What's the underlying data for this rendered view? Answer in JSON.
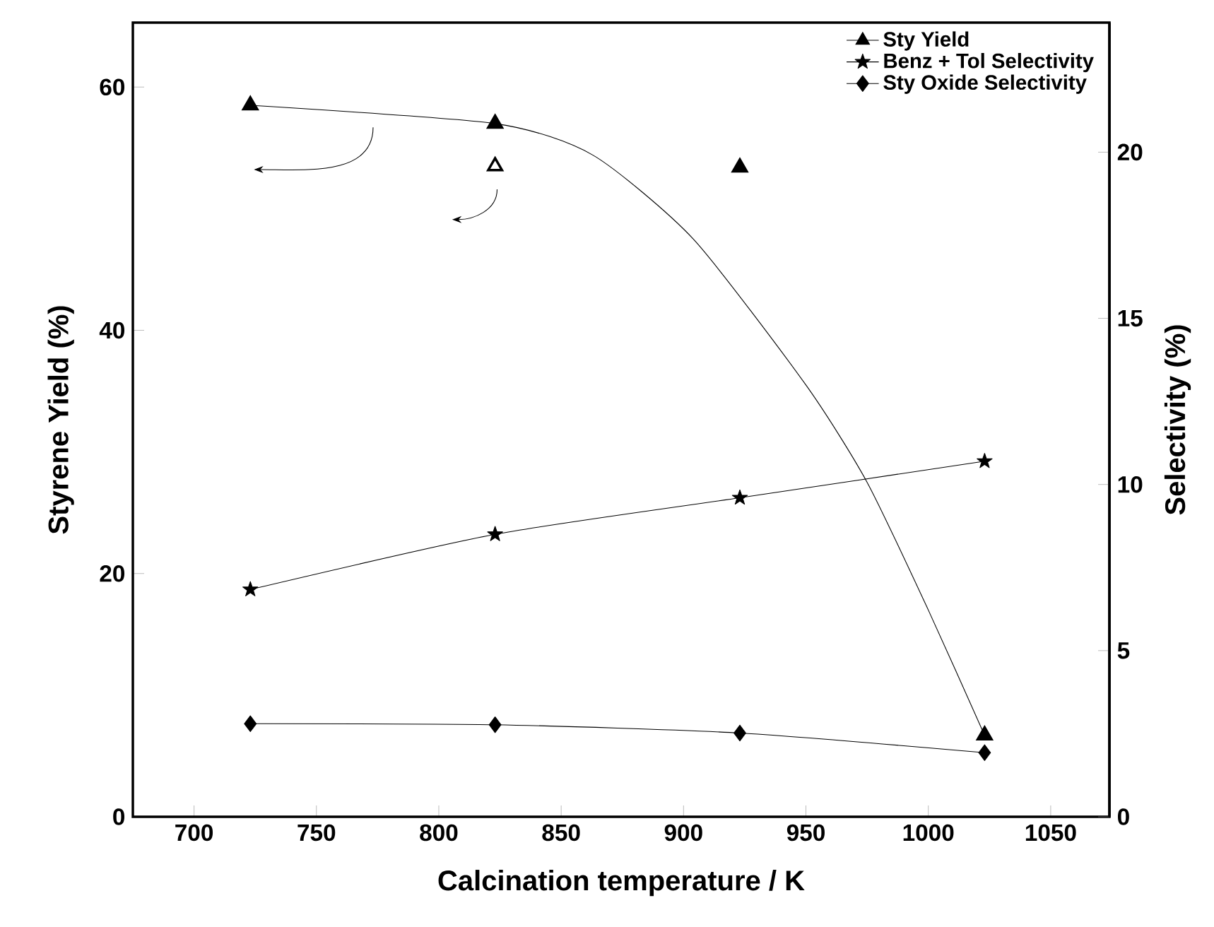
{
  "chart_data": {
    "type": "line",
    "xlabel": "Calcination temperature / K",
    "ylabel": "Styrene Yield (%)",
    "y2label": "Selectivity (%)",
    "x": [
      723,
      823,
      923,
      1023
    ],
    "xlim": [
      675,
      1074
    ],
    "xticks": [
      700,
      750,
      800,
      850,
      900,
      950,
      1000,
      1050
    ],
    "ylim": [
      0,
      65.3
    ],
    "yticks": [
      0,
      20,
      40,
      60
    ],
    "y2lim": [
      0,
      23.9
    ],
    "y2ticks": [
      0,
      5,
      10,
      15,
      20
    ],
    "legend": "top right",
    "grid": false,
    "series": [
      {
        "name": "Sty Yield",
        "type": "scatter",
        "marker": "triangle",
        "color": "#000000",
        "values": [
          58.5,
          57.0,
          53.4,
          6.7
        ]
      },
      {
        "type": "scatter",
        "marker": "triangle",
        "color": "#ffffff",
        "x": [
          823
        ],
        "values": [
          53.5
        ]
      },
      {
        "marker": "none",
        "color": "#000000",
        "x": [
          723,
          823,
          863,
          904,
          950,
          975,
          1000,
          1023
        ],
        "values": [
          58.5,
          57.0,
          54.4,
          47.5,
          35.5,
          27.5,
          17.0,
          6.7
        ]
      },
      {
        "name": "Benz + Tol Selectivity",
        "axis": "y2",
        "marker": "star",
        "color": "#000000",
        "values": [
          6.84,
          8.5,
          9.6,
          10.7
        ]
      },
      {
        "name": "Sty Oxide Selectivity",
        "axis": "y2",
        "marker": "diamond",
        "color": "#000000",
        "values": [
          2.8,
          2.77,
          2.52,
          1.93
        ]
      }
    ]
  }
}
